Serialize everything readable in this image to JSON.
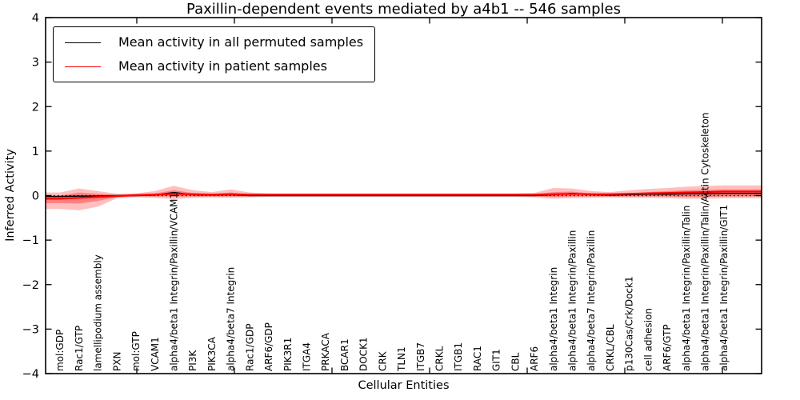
{
  "title": "Paxillin-dependent events mediated by a4b1 -- 546 samples",
  "axis": {
    "x_label": "Cellular Entities",
    "y_label": "Inferred Activity"
  },
  "legend": {
    "items": [
      {
        "label": "Mean activity in all permuted samples",
        "color": "#000000"
      },
      {
        "label": "Mean activity in patient samples",
        "color": "#ff0000"
      }
    ]
  },
  "colors": {
    "frame": "#000000",
    "patient_line": "#ff0000",
    "permuted_line": "#000000",
    "band_fill": "#ff0000",
    "zero_line": "#000000",
    "background": "#ffffff"
  },
  "chart_data": {
    "type": "line",
    "title": "Paxillin-dependent events mediated by a4b1 -- 546 samples",
    "xlabel": "Cellular Entities",
    "ylabel": "Inferred Activity",
    "ylim": [
      -4,
      4
    ],
    "yticks": [
      -4,
      -3,
      -2,
      -1,
      0,
      1,
      2,
      3,
      4
    ],
    "grid": false,
    "legend_position": "upper left",
    "zero_line": {
      "y": 0,
      "style": "dotted",
      "color": "#000000"
    },
    "categories": [
      "mol:GDP",
      "Rac1/GTP",
      "lamellipodium assembly",
      "PXN",
      "mol:GTP",
      "VCAM1",
      "alpha4/beta1 Integrin/Paxillin/VCAM1",
      "PI3K",
      "PIK3CA",
      "alpha4/beta7 Integrin",
      "Rac1/GDP",
      "ARF6/GDP",
      "PIK3R1",
      "ITGA4",
      "PRKACA",
      "BCAR1",
      "DOCK1",
      "CRK",
      "TLN1",
      "ITGB7",
      "CRKL",
      "ITGB1",
      "RAC1",
      "GIT1",
      "CBL",
      "ARF6",
      "alpha4/beta1 Integrin",
      "alpha4/beta1 Integrin/Paxillin",
      "alpha4/beta7 Integrin/Paxillin",
      "CRKL/CBL",
      "p130Cas/Crk/Dock1",
      "cell adhesion",
      "ARF6/GTP",
      "alpha4/beta1 Integrin/Paxillin/Talin",
      "alpha4/beta1 Integrin/Paxillin/Talin/Actin Cytoskeleton",
      "alpha4/beta1 Integrin/Paxillin/GIT1"
    ],
    "series": [
      {
        "name": "Mean activity in all permuted samples",
        "color": "#000000",
        "values": [
          -0.02,
          -0.01,
          -0.01,
          0.0,
          0.0,
          0.01,
          0.07,
          0.02,
          0.01,
          0.02,
          0.0,
          0.0,
          0.0,
          0.0,
          0.0,
          0.0,
          0.0,
          0.0,
          0.0,
          0.0,
          0.0,
          0.0,
          0.0,
          0.0,
          0.0,
          0.0,
          0.02,
          0.05,
          0.02,
          0.01,
          0.02,
          0.03,
          0.03,
          0.04,
          0.04,
          0.05
        ]
      },
      {
        "name": "Mean activity in patient samples",
        "color": "#ff0000",
        "values": [
          -0.07,
          -0.05,
          -0.03,
          -0.01,
          0.01,
          0.02,
          0.04,
          0.03,
          0.02,
          0.03,
          0.02,
          0.02,
          0.02,
          0.02,
          0.02,
          0.02,
          0.02,
          0.02,
          0.02,
          0.02,
          0.02,
          0.02,
          0.02,
          0.02,
          0.02,
          0.02,
          0.03,
          0.04,
          0.03,
          0.03,
          0.04,
          0.05,
          0.06,
          0.07,
          0.08,
          0.09
        ]
      }
    ],
    "bands": [
      {
        "name": "patient-activity-outer-band",
        "color": "#ff0000",
        "opacity": 0.25,
        "high": [
          0.07,
          0.16,
          0.1,
          0.04,
          0.05,
          0.1,
          0.22,
          0.12,
          0.08,
          0.14,
          0.07,
          0.05,
          0.05,
          0.05,
          0.05,
          0.05,
          0.05,
          0.05,
          0.05,
          0.05,
          0.05,
          0.05,
          0.05,
          0.05,
          0.05,
          0.06,
          0.17,
          0.16,
          0.1,
          0.08,
          0.12,
          0.15,
          0.17,
          0.2,
          0.22,
          0.23
        ],
        "low": [
          -0.3,
          -0.33,
          -0.25,
          -0.06,
          -0.04,
          -0.05,
          -0.08,
          -0.05,
          -0.04,
          -0.05,
          -0.04,
          -0.03,
          -0.03,
          -0.03,
          -0.03,
          -0.03,
          -0.03,
          -0.03,
          -0.03,
          -0.03,
          -0.03,
          -0.03,
          -0.03,
          -0.03,
          -0.03,
          -0.04,
          -0.07,
          -0.06,
          -0.05,
          -0.04,
          -0.05,
          -0.05,
          -0.06,
          -0.07,
          -0.07,
          -0.06
        ]
      },
      {
        "name": "patient-activity-inner-band",
        "color": "#ff0000",
        "opacity": 0.32,
        "high": [
          0.0,
          0.07,
          0.04,
          0.02,
          0.03,
          0.05,
          0.12,
          0.06,
          0.04,
          0.07,
          0.03,
          0.03,
          0.03,
          0.03,
          0.03,
          0.03,
          0.03,
          0.03,
          0.03,
          0.03,
          0.03,
          0.03,
          0.03,
          0.03,
          0.03,
          0.03,
          0.08,
          0.09,
          0.05,
          0.04,
          0.06,
          0.08,
          0.1,
          0.12,
          0.13,
          0.14
        ],
        "low": [
          -0.17,
          -0.18,
          -0.12,
          -0.03,
          -0.02,
          -0.02,
          -0.02,
          -0.02,
          -0.02,
          -0.02,
          -0.02,
          -0.01,
          -0.01,
          -0.01,
          -0.01,
          -0.01,
          -0.01,
          -0.01,
          -0.01,
          -0.01,
          -0.01,
          -0.01,
          -0.01,
          -0.01,
          -0.01,
          -0.02,
          -0.03,
          -0.02,
          -0.02,
          -0.02,
          -0.02,
          -0.02,
          -0.02,
          -0.03,
          -0.03,
          -0.02
        ]
      }
    ]
  }
}
